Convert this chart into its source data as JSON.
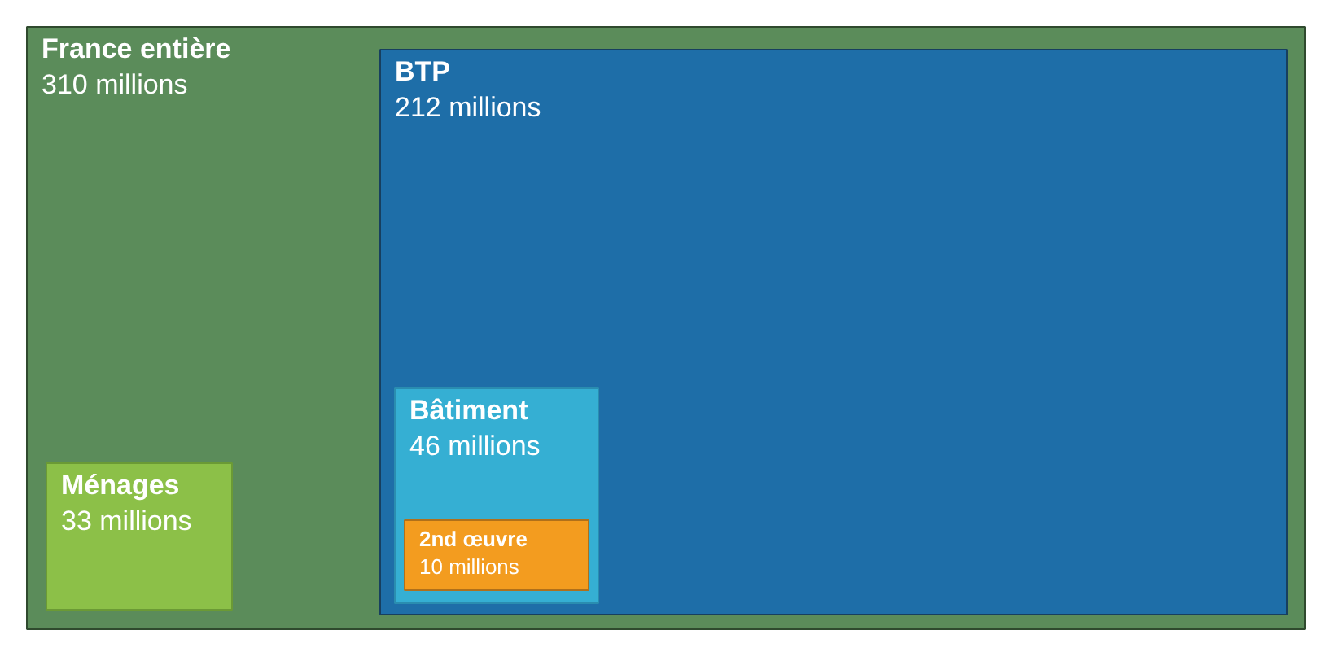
{
  "chart_data": {
    "type": "other",
    "categories": [
      "France entière",
      "BTP",
      "Ménages",
      "Bâtiment",
      "2nd œuvre"
    ],
    "values": [
      310,
      212,
      33,
      46,
      10
    ],
    "value_labels": [
      "310 millions",
      "212 millions",
      "33 millions",
      "46 millions",
      "10 millions"
    ],
    "colors": [
      "#5b8c5a",
      "#1e6ea8",
      "#8cc048",
      "#35afd3",
      "#f39c1f"
    ]
  }
}
